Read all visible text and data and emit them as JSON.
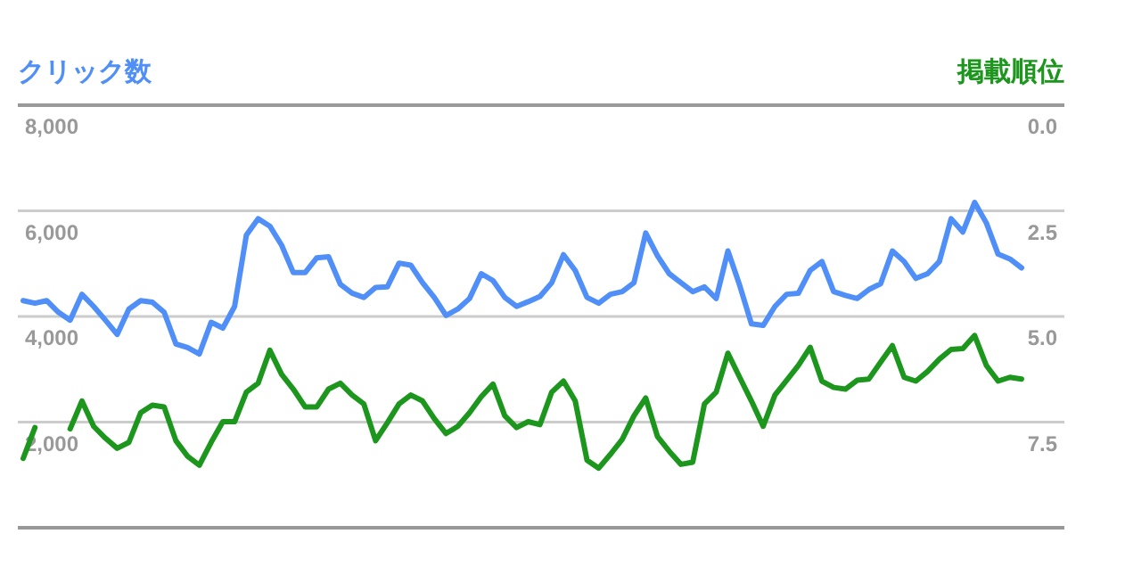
{
  "chart_data": {
    "type": "line",
    "ylabel": "クリック数",
    "y2label": "掲載順位",
    "categories": [
      null,
      null,
      null,
      null,
      null,
      null,
      null,
      null,
      null,
      null,
      null,
      null,
      null,
      null,
      null,
      null,
      null,
      null,
      null,
      null,
      null,
      null,
      null,
      null,
      null,
      null,
      null,
      null,
      null,
      null,
      null,
      null,
      null,
      null,
      null,
      null,
      null,
      null,
      null,
      null,
      null,
      null,
      null,
      null,
      null,
      null,
      null,
      null,
      null,
      null,
      null,
      null,
      null,
      null,
      null,
      null,
      null,
      null,
      null,
      null,
      null,
      null,
      null,
      null,
      null,
      null,
      null,
      null,
      null,
      null,
      null,
      null,
      null,
      null,
      null,
      null,
      null,
      null,
      null,
      null,
      null,
      null,
      null,
      null,
      null,
      null
    ],
    "series": [
      {
        "color": "#4f8ff7",
        "values": [
          4300,
          4250,
          4300,
          4080,
          3930,
          4420,
          4190,
          3930,
          3660,
          4140,
          4300,
          4270,
          4080,
          3480,
          3410,
          3290,
          3890,
          3780,
          4190,
          5540,
          5850,
          5710,
          5350,
          4830,
          4830,
          5110,
          5130,
          4610,
          4440,
          4360,
          4550,
          4560,
          5010,
          4970,
          4640,
          4360,
          4020,
          4140,
          4340,
          4810,
          4680,
          4360,
          4190,
          4280,
          4380,
          4640,
          5170,
          4870,
          4360,
          4250,
          4420,
          4470,
          4640,
          5580,
          5150,
          4810,
          4640,
          4470,
          4560,
          4340,
          5240,
          4590,
          3860,
          3830,
          4190,
          4420,
          4440,
          4870,
          5040,
          4470,
          4400,
          4340,
          4510,
          4620,
          5240,
          5040,
          4720,
          4810,
          5040,
          5850,
          5600,
          6160,
          5770,
          5180,
          5090,
          4920
        ]
      },
      {
        "axis": "y2",
        "color": "#1c961c",
        "values": [
          8.36,
          7.63,
          null,
          null,
          7.66,
          7.0,
          7.6,
          7.88,
          8.12,
          7.98,
          7.28,
          7.1,
          7.14,
          7.94,
          8.31,
          8.52,
          7.98,
          7.49,
          7.49,
          6.79,
          6.58,
          5.8,
          6.37,
          6.72,
          7.14,
          7.14,
          6.72,
          6.58,
          6.86,
          7.07,
          7.94,
          7.52,
          7.07,
          6.86,
          7.0,
          7.42,
          7.77,
          7.6,
          7.28,
          6.9,
          6.6,
          7.35,
          7.63,
          7.49,
          7.56,
          6.79,
          6.53,
          7.0,
          8.4,
          8.59,
          8.26,
          7.91,
          7.35,
          6.93,
          7.84,
          8.19,
          8.5,
          8.45,
          7.07,
          6.79,
          5.87,
          6.44,
          7.0,
          7.6,
          6.86,
          6.51,
          6.16,
          5.73,
          6.53,
          6.68,
          6.72,
          6.51,
          6.48,
          6.08,
          5.69,
          6.44,
          6.53,
          6.3,
          6.01,
          5.78,
          5.76,
          5.45,
          6.16,
          6.53,
          6.44,
          6.48
        ]
      }
    ],
    "ylim": [
      0,
      8000
    ],
    "yticks": [
      {
        "value": 0,
        "label": null
      },
      {
        "value": 2000,
        "label": "2,000"
      },
      {
        "value": 4000,
        "label": "4,000"
      },
      {
        "value": 6000,
        "label": "6,000"
      },
      {
        "value": 8000,
        "label": "8,000"
      }
    ],
    "y2lim": [
      10,
      0
    ],
    "y2ticks": [
      {
        "value": 10,
        "label": null
      },
      7.5,
      {
        "value": 5,
        "label": "5.0"
      },
      2.5,
      {
        "value": 0,
        "label": "0.0"
      }
    ],
    "grid": "y"
  }
}
